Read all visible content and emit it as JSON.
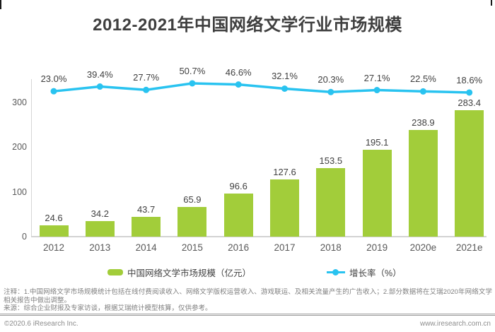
{
  "page": {
    "title": "2012-2021年中国网络文学行业市场规模"
  },
  "chart_data": {
    "type": "combo-bar-line",
    "categories": [
      "2012",
      "2013",
      "2014",
      "2015",
      "2016",
      "2017",
      "2018",
      "2019",
      "2020e",
      "2021e"
    ],
    "series": [
      {
        "name": "中国网络文学市场规模（亿元）",
        "type": "bar",
        "color": "#a2cd3a",
        "unit": "亿元",
        "values": [
          24.6,
          34.2,
          43.7,
          65.9,
          96.6,
          127.6,
          153.5,
          195.1,
          238.9,
          283.4
        ]
      },
      {
        "name": "增长率（%）",
        "type": "line",
        "color": "#29c3f0",
        "unit": "%",
        "values": [
          23.0,
          39.4,
          27.7,
          50.7,
          46.6,
          32.1,
          20.3,
          27.1,
          22.5,
          18.6
        ]
      }
    ],
    "yticks": [
      0,
      100,
      200,
      300
    ],
    "ylim": [
      0,
      350
    ],
    "grid": false,
    "legend_position": "bottom",
    "value_labels": true
  },
  "notes": {
    "annotation": "注释：1.中国网络文学市场规模统计包括在线付费阅读收入、网络文学版权运营收入、游戏联运、及相关流量产生的广告收入；2.部分数据将在艾瑞2020年网络文学相关报告中做出调整。",
    "source": "来源：综合企业财报及专家访谈，根据艾瑞统计模型核算，仅供参考。"
  },
  "footer": {
    "left": "©2020.6 iResearch Inc.",
    "right": "www.iresearch.com.cn"
  },
  "colors": {
    "bar": "#a2cd3a",
    "line": "#29c3f0",
    "title": "#3f3f3f",
    "axis": "#d2d2d2",
    "tick_text": "#595959",
    "label_text": "#404040",
    "note_text": "#7f7f7f",
    "footer_text": "#8c8c8c"
  }
}
